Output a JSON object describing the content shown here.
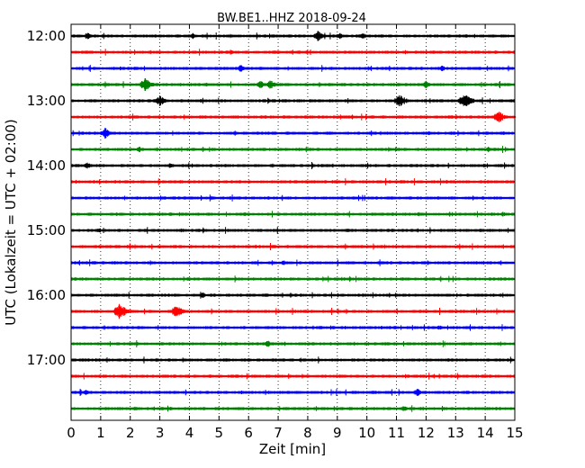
{
  "chart_data": {
    "type": "line",
    "title": "BW.BE1..HHZ 2018-09-24",
    "xlabel": "Zeit  [min]",
    "ylabel": "UTC (Lokalzeit = UTC + 02:00)",
    "xlim": [
      0,
      15
    ],
    "x_ticks": [
      "0",
      "1",
      "2",
      "3",
      "4",
      "5",
      "6",
      "7",
      "8",
      "9",
      "10",
      "11",
      "12",
      "13",
      "14",
      "15"
    ],
    "y_start": "12:00",
    "y_end": "17:45",
    "trace_interval_min": 15,
    "y_ticks": [
      "12:00",
      "13:00",
      "14:00",
      "15:00",
      "16:00",
      "17:00"
    ],
    "grid": true,
    "trace_color_cycle": [
      "#000000",
      "#ff0000",
      "#0000ff",
      "#008000"
    ],
    "traces": [
      {
        "start": "12:00",
        "events": [
          {
            "min": 0.55,
            "amp": 0.5
          },
          {
            "min": 4.1,
            "amp": 0.45
          },
          {
            "min": 8.35,
            "amp": 0.65
          },
          {
            "min": 9.1,
            "amp": 0.4
          },
          {
            "min": 9.85,
            "amp": 0.45
          }
        ]
      },
      {
        "start": "12:15",
        "events": [
          {
            "min": 5.4,
            "amp": 0.35
          },
          {
            "min": 8.0,
            "amp": 0.2
          }
        ]
      },
      {
        "start": "12:30",
        "events": [
          {
            "min": 5.75,
            "amp": 0.55
          },
          {
            "min": 12.55,
            "amp": 0.4
          }
        ]
      },
      {
        "start": "12:45",
        "events": [
          {
            "min": 2.5,
            "amp": 0.85
          },
          {
            "min": 6.4,
            "amp": 0.55
          },
          {
            "min": 6.75,
            "amp": 0.6
          },
          {
            "min": 12.0,
            "amp": 0.5
          }
        ]
      },
      {
        "start": "13:00",
        "events": [
          {
            "min": 3.0,
            "amp": 0.7
          },
          {
            "min": 11.1,
            "amp": 0.85
          },
          {
            "min": 13.3,
            "amp": 0.95
          }
        ]
      },
      {
        "start": "13:15",
        "events": [
          {
            "min": 14.45,
            "amp": 0.8
          }
        ]
      },
      {
        "start": "13:30",
        "events": [
          {
            "min": 1.15,
            "amp": 0.7
          },
          {
            "min": 12.1,
            "amp": 0.35
          }
        ]
      },
      {
        "start": "13:45",
        "events": [
          {
            "min": 2.3,
            "amp": 0.4
          },
          {
            "min": 14.1,
            "amp": 0.35
          }
        ]
      },
      {
        "start": "14:00",
        "events": [
          {
            "min": 0.55,
            "amp": 0.45
          },
          {
            "min": 3.35,
            "amp": 0.4
          },
          {
            "min": 10.0,
            "amp": 0.3
          }
        ]
      },
      {
        "start": "14:15",
        "events": [
          {
            "min": 2.0,
            "amp": 0.2
          },
          {
            "min": 14.1,
            "amp": 0.25
          }
        ]
      },
      {
        "start": "14:30",
        "events": [
          {
            "min": 0.3,
            "amp": 0.25
          },
          {
            "min": 14.3,
            "amp": 0.2
          }
        ]
      },
      {
        "start": "14:45",
        "events": [
          {
            "min": 14.6,
            "amp": 0.3
          }
        ]
      },
      {
        "start": "15:00",
        "events": [
          {
            "min": 0.95,
            "amp": 0.3
          }
        ]
      },
      {
        "start": "15:15",
        "events": [
          {
            "min": 3.05,
            "amp": 0.2
          }
        ]
      },
      {
        "start": "15:30",
        "events": [
          {
            "min": 7.2,
            "amp": 0.35
          }
        ]
      },
      {
        "start": "15:45",
        "events": [
          {
            "min": 6.0,
            "amp": 0.2
          }
        ]
      },
      {
        "start": "16:00",
        "events": [
          {
            "min": 4.45,
            "amp": 0.4
          },
          {
            "min": 10.6,
            "amp": 0.2
          }
        ]
      },
      {
        "start": "16:15",
        "events": [
          {
            "min": 1.65,
            "amp": 1.0
          },
          {
            "min": 3.55,
            "amp": 0.85
          }
        ]
      },
      {
        "start": "16:30",
        "events": [
          {
            "min": 12.45,
            "amp": 0.35
          }
        ]
      },
      {
        "start": "16:45",
        "events": [
          {
            "min": 6.65,
            "amp": 0.45
          }
        ]
      },
      {
        "start": "17:00",
        "events": [
          {
            "min": 4.0,
            "amp": 0.2
          }
        ]
      },
      {
        "start": "17:15",
        "events": [
          {
            "min": 4.0,
            "amp": 0.15
          }
        ]
      },
      {
        "start": "17:30",
        "events": [
          {
            "min": 0.5,
            "amp": 0.4
          },
          {
            "min": 11.7,
            "amp": 0.55
          }
        ]
      },
      {
        "start": "17:45",
        "events": [
          {
            "min": 11.25,
            "amp": 0.4
          }
        ]
      }
    ]
  }
}
